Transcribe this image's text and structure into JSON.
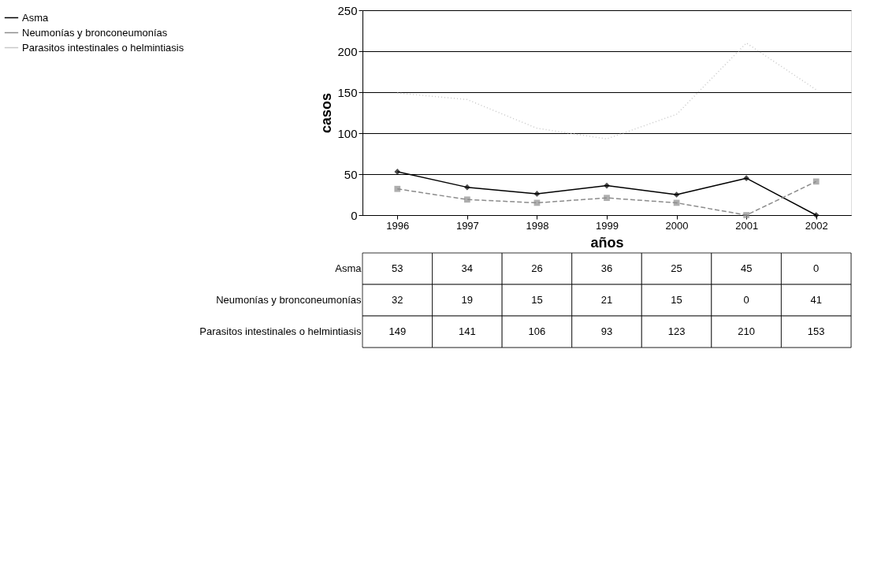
{
  "chart_data": {
    "type": "line",
    "xlabel": "años",
    "ylabel": "casos",
    "categories": [
      "1996",
      "1997",
      "1998",
      "1999",
      "2000",
      "2001",
      "2002"
    ],
    "series": [
      {
        "name": "Asma",
        "color": "#000000",
        "marker": "diamond",
        "line_style": "solid",
        "values": [
          53,
          34,
          26,
          36,
          25,
          45,
          0
        ]
      },
      {
        "name": "Neumonías y bronconeumonías",
        "color": "#8c8c8c",
        "marker": "square",
        "line_style": "dashed",
        "values": [
          32,
          19,
          15,
          21,
          15,
          0,
          41
        ]
      },
      {
        "name": "Parasitos intestinales o helmintiasis",
        "color": "#c8c8c8",
        "marker": "none",
        "line_style": "dotted",
        "values": [
          149,
          141,
          106,
          93,
          123,
          210,
          153
        ]
      }
    ],
    "ylim": [
      0,
      250
    ],
    "yticks": [
      0,
      50,
      100,
      150,
      200,
      250
    ],
    "grid": "y",
    "legend": "left",
    "data_labels": true
  }
}
